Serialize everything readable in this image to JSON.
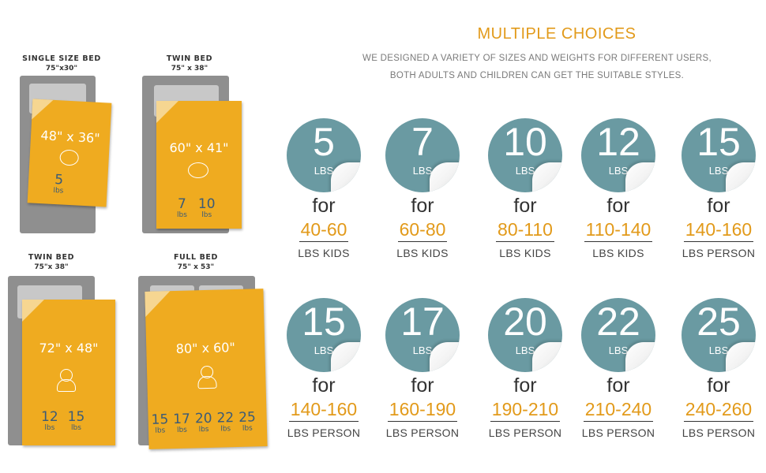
{
  "header": {
    "title": "MULTIPLE CHOICES",
    "subtitle_line1": "WE DESIGNED A VARIETY OF SIZES AND WEIGHTS FOR DIFFERENT USERS,",
    "subtitle_line2": "BOTH ADULTS AND CHILDREN CAN GET THE SUITABLE STYLES."
  },
  "beds": [
    {
      "name": "SINGLE SIZE BED",
      "size": "75\"x30\"",
      "blanket_size": "48\" x 36\"",
      "weights": [
        {
          "n": "5",
          "u": "lbs"
        }
      ]
    },
    {
      "name": "TWIN BED",
      "size": "75\" x 38\"",
      "blanket_size": "60\" x 41\"",
      "weights": [
        {
          "n": "7",
          "u": "lbs"
        },
        {
          "n": "10",
          "u": "lbs"
        }
      ]
    },
    {
      "name": "TWIN BED",
      "size": "75\"x 38\"",
      "blanket_size": "72\" x 48\"",
      "weights": [
        {
          "n": "12",
          "u": "lbs"
        },
        {
          "n": "15",
          "u": "lbs"
        }
      ]
    },
    {
      "name": "FULL BED",
      "size": "75\" x 53\"",
      "blanket_size": "80\" x 60\"",
      "weights": [
        {
          "n": "15",
          "u": "lbs"
        },
        {
          "n": "17",
          "u": "lbs"
        },
        {
          "n": "20",
          "u": "lbs"
        },
        {
          "n": "22",
          "u": "lbs"
        },
        {
          "n": "25",
          "u": "lbs"
        }
      ]
    }
  ],
  "options": [
    {
      "weight": "5",
      "unit": "LBS",
      "for": "for",
      "range": "40-60",
      "who": "LBS KIDS"
    },
    {
      "weight": "7",
      "unit": "LBS",
      "for": "for",
      "range": "60-80",
      "who": "LBS KIDS"
    },
    {
      "weight": "10",
      "unit": "LBS",
      "for": "for",
      "range": "80-110",
      "who": "LBS KIDS"
    },
    {
      "weight": "12",
      "unit": "LBS",
      "for": "for",
      "range": "110-140",
      "who": "LBS KIDS"
    },
    {
      "weight": "15",
      "unit": "LBS",
      "for": "for",
      "range": "140-160",
      "who": "LBS PERSON"
    },
    {
      "weight": "15",
      "unit": "LBS",
      "for": "for",
      "range": "140-160",
      "who": "LBS PERSON"
    },
    {
      "weight": "17",
      "unit": "LBS",
      "for": "for",
      "range": "160-190",
      "who": "LBS PERSON"
    },
    {
      "weight": "20",
      "unit": "LBS",
      "for": "for",
      "range": "190-210",
      "who": "LBS PERSON"
    },
    {
      "weight": "22",
      "unit": "LBS",
      "for": "for",
      "range": "210-240",
      "who": "LBS PERSON"
    },
    {
      "weight": "25",
      "unit": "LBS",
      "for": "for",
      "range": "240-260",
      "who": "LBS PERSON"
    }
  ],
  "colors": {
    "accent": "#e29a1a",
    "circle": "#6a9aa2",
    "blanket": "#efab20",
    "mattress": "#8f8f8f"
  }
}
